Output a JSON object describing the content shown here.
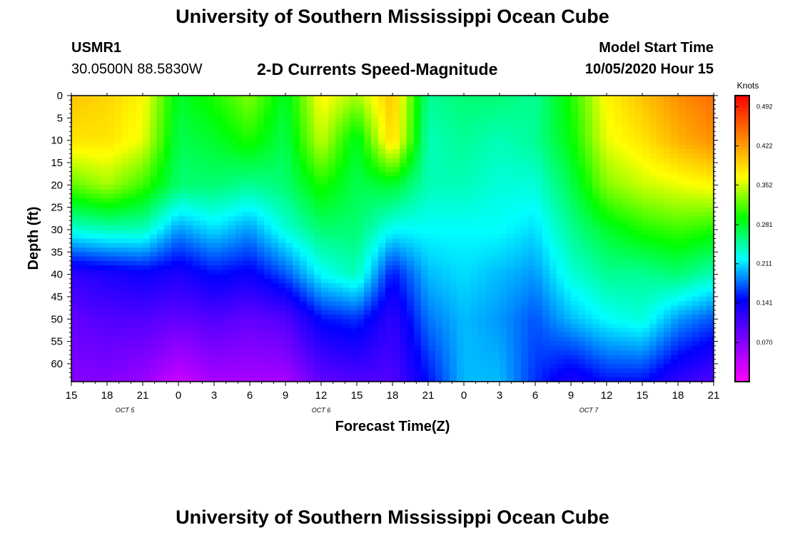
{
  "header": {
    "title": "University of Southern Mississippi Ocean Cube",
    "station_id": "USMR1",
    "coordinates": "30.0500N 88.5830W",
    "plot_title": "2-D Currents Speed-Magnitude",
    "model_label": "Model Start Time",
    "model_time": "10/05/2020 Hour 15"
  },
  "footer": {
    "title": "University of Southern Mississippi Ocean Cube"
  },
  "chart_data": {
    "type": "heatmap",
    "title": "2-D Currents Speed-Magnitude",
    "xlabel": "Forecast Time(Z)",
    "ylabel": "Depth (ft)",
    "x_ticks": [
      "15",
      "18",
      "21",
      "0",
      "3",
      "6",
      "9",
      "12",
      "15",
      "18",
      "21",
      "0",
      "3",
      "6",
      "9",
      "12",
      "15",
      "18",
      "21"
    ],
    "x_hours": [
      0,
      3,
      6,
      9,
      12,
      15,
      18,
      21,
      24,
      27,
      30,
      33,
      36,
      39,
      42,
      45,
      48,
      51,
      54
    ],
    "xlim": [
      0,
      54
    ],
    "date_labels": [
      {
        "text": "OCT 5",
        "hour": 4.5
      },
      {
        "text": "OCT 6",
        "hour": 21
      },
      {
        "text": "OCT 7",
        "hour": 43.5
      }
    ],
    "y_ticks": [
      "0",
      "5",
      "10",
      "15",
      "20",
      "25",
      "30",
      "35",
      "40",
      "45",
      "50",
      "55",
      "60"
    ],
    "y_values": [
      0,
      5,
      10,
      15,
      20,
      25,
      30,
      35,
      40,
      45,
      50,
      55,
      60
    ],
    "ylim": [
      0,
      64
    ],
    "y_inverted": true,
    "colorbar": {
      "label": "Knots",
      "ticks": [
        "0.492",
        "0.422",
        "0.352",
        "0.281",
        "0.211",
        "0.141",
        "0.070"
      ],
      "tick_values": [
        0.492,
        0.422,
        0.352,
        0.281,
        0.211,
        0.141,
        0.07
      ],
      "range": [
        0.0,
        0.512
      ],
      "colors": [
        "#ff00ff",
        "#8000ff",
        "#0000ff",
        "#00ffff",
        "#00ff00",
        "#ffff00",
        "#ff8000",
        "#ff0000"
      ]
    },
    "time_hours": [
      0,
      3,
      6,
      9,
      12,
      15,
      18,
      21,
      24,
      27,
      30,
      33,
      36,
      39,
      42,
      45,
      48,
      51,
      54
    ],
    "depth_ft": [
      0,
      10,
      20,
      30,
      40,
      50,
      64
    ],
    "speed_knots": [
      [
        0.4,
        0.39,
        0.37,
        0.28,
        0.3,
        0.33,
        0.28,
        0.37,
        0.34,
        0.4,
        0.25,
        0.26,
        0.26,
        0.25,
        0.3,
        0.37,
        0.4,
        0.43,
        0.45
      ],
      [
        0.38,
        0.38,
        0.36,
        0.27,
        0.28,
        0.3,
        0.27,
        0.35,
        0.28,
        0.39,
        0.24,
        0.25,
        0.24,
        0.25,
        0.29,
        0.36,
        0.38,
        0.41,
        0.43
      ],
      [
        0.32,
        0.34,
        0.31,
        0.26,
        0.26,
        0.25,
        0.26,
        0.3,
        0.27,
        0.28,
        0.24,
        0.24,
        0.23,
        0.23,
        0.27,
        0.33,
        0.35,
        0.36,
        0.37
      ],
      [
        0.23,
        0.24,
        0.24,
        0.19,
        0.21,
        0.19,
        0.23,
        0.26,
        0.26,
        0.22,
        0.22,
        0.22,
        0.22,
        0.21,
        0.25,
        0.28,
        0.3,
        0.31,
        0.3
      ],
      [
        0.12,
        0.13,
        0.14,
        0.13,
        0.15,
        0.14,
        0.17,
        0.22,
        0.24,
        0.15,
        0.2,
        0.21,
        0.2,
        0.19,
        0.23,
        0.25,
        0.25,
        0.26,
        0.24
      ],
      [
        0.09,
        0.1,
        0.1,
        0.09,
        0.1,
        0.09,
        0.1,
        0.15,
        0.16,
        0.12,
        0.18,
        0.2,
        0.19,
        0.17,
        0.2,
        0.22,
        0.23,
        0.19,
        0.17
      ],
      [
        0.07,
        0.07,
        0.06,
        0.03,
        0.05,
        0.05,
        0.05,
        0.09,
        0.1,
        0.1,
        0.15,
        0.2,
        0.2,
        0.16,
        0.13,
        0.15,
        0.15,
        0.12,
        0.1
      ]
    ]
  }
}
